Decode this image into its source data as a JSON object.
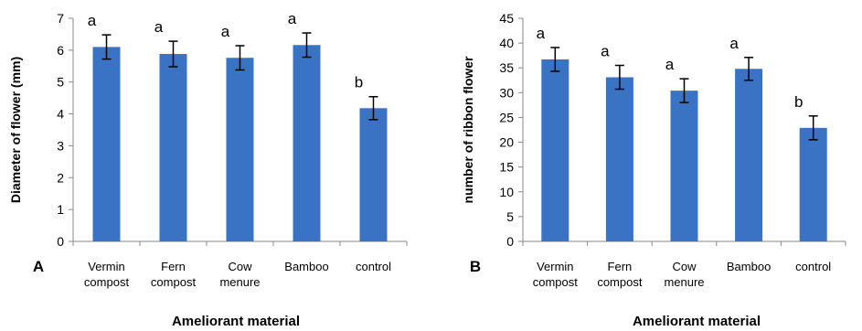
{
  "chart_data": [
    {
      "type": "bar",
      "panel_label": "A",
      "categories": [
        [
          "Vermin",
          "compost"
        ],
        [
          "Fern",
          "compost"
        ],
        [
          "Cow",
          "menure"
        ],
        [
          "Bamboo"
        ],
        [
          "control"
        ]
      ],
      "values": [
        6.1,
        5.88,
        5.76,
        6.16,
        4.18
      ],
      "errors": [
        0.38,
        0.4,
        0.38,
        0.38,
        0.36
      ],
      "significance": [
        "a",
        "a",
        "a",
        "a",
        "b"
      ],
      "ylabel": "Diameter of flower (mm)",
      "xlabel": "Ameliorant material",
      "ylim": [
        0,
        7
      ],
      "yticks": [
        0,
        1,
        2,
        3,
        4,
        5,
        6,
        7
      ],
      "grid": false,
      "bar_color": "#3a73c4"
    },
    {
      "type": "bar",
      "panel_label": "B",
      "categories": [
        [
          "Vermin",
          "compost"
        ],
        [
          "Fern",
          "compost"
        ],
        [
          "Cow",
          "menure"
        ],
        [
          "Bamboo"
        ],
        [
          "control"
        ]
      ],
      "values": [
        36.7,
        33.1,
        30.4,
        34.8,
        22.9
      ],
      "errors": [
        2.4,
        2.4,
        2.4,
        2.3,
        2.4
      ],
      "significance": [
        "a",
        "a",
        "a",
        "a",
        "b"
      ],
      "ylabel": "number of ribbon flower",
      "xlabel": "Ameliorant material",
      "ylim": [
        0,
        45
      ],
      "yticks": [
        0,
        5,
        10,
        15,
        20,
        25,
        30,
        35,
        40,
        45
      ],
      "grid": false,
      "bar_color": "#3a73c4"
    }
  ]
}
